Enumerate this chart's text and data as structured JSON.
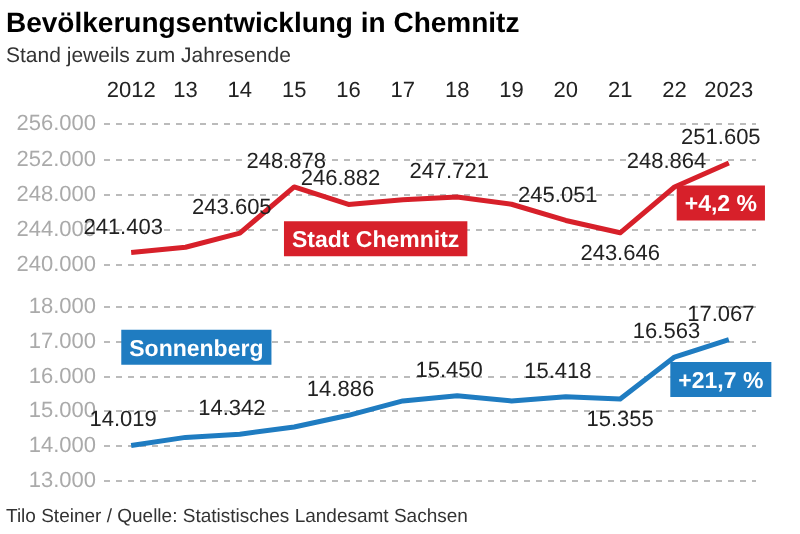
{
  "chart_data": [
    {
      "type": "line",
      "title": "Bevölkerungsentwicklung in Chemnitz",
      "subtitle": "Stand jeweils zum Jahresende",
      "categories": [
        "2012",
        "13",
        "14",
        "15",
        "16",
        "17",
        "18",
        "19",
        "20",
        "21",
        "22",
        "2023"
      ],
      "series": [
        {
          "name": "Stadt Chemnitz",
          "color": "#d7202a",
          "values": [
            241403,
            242000,
            243605,
            248878,
            246882,
            247400,
            247721,
            246900,
            245051,
            243646,
            248864,
            251605
          ],
          "value_labels": [
            "241.403",
            null,
            "243.605",
            "248.878",
            "246.882",
            null,
            "247.721",
            null,
            "245.051",
            "243.646",
            "248.864",
            "251.605"
          ]
        }
      ],
      "ylim": [
        240000,
        256000
      ],
      "yticks": [
        {
          "value": 240000,
          "label": "240.000"
        },
        {
          "value": 244000,
          "label": "244.000"
        },
        {
          "value": 248000,
          "label": "248.000"
        },
        {
          "value": 252000,
          "label": "252.000"
        },
        {
          "value": 256000,
          "label": "256.000"
        }
      ],
      "grid": "y",
      "legend": false,
      "marker": "none",
      "line_style": "solid",
      "annotations": [
        {
          "text": "+4,2 %",
          "x": "2023",
          "y": 251605
        }
      ]
    },
    {
      "type": "line",
      "categories": [
        "2012",
        "13",
        "14",
        "15",
        "16",
        "17",
        "18",
        "19",
        "20",
        "21",
        "22",
        "2023"
      ],
      "series": [
        {
          "name": "Sonnenberg",
          "color": "#1f7cc1",
          "values": [
            14019,
            14250,
            14342,
            14550,
            14886,
            15300,
            15450,
            15300,
            15418,
            15355,
            16563,
            17067
          ],
          "value_labels": [
            "14.019",
            null,
            "14.342",
            null,
            "14.886",
            null,
            "15.450",
            null,
            "15.418",
            "15.355",
            "16.563",
            "17.067"
          ]
        }
      ],
      "ylim": [
        13000,
        18000
      ],
      "yticks": [
        {
          "value": 13000,
          "label": "13.000"
        },
        {
          "value": 14000,
          "label": "14.000"
        },
        {
          "value": 15000,
          "label": "15.000"
        },
        {
          "value": 16000,
          "label": "16.000"
        },
        {
          "value": 17000,
          "label": "17.000"
        },
        {
          "value": 18000,
          "label": "18.000"
        }
      ],
      "grid": "y",
      "legend": false,
      "marker": "none",
      "line_style": "solid",
      "tick_labels": "y",
      "annotations": [
        {
          "text": "+21,7 %",
          "x": "2023",
          "y": 17067
        },
        "Tilo Steiner / Quelle: Statistisches Landesamt Sachsen"
      ]
    }
  ]
}
